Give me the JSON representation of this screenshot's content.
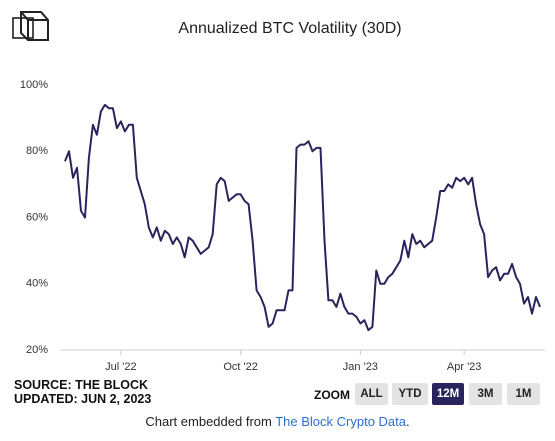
{
  "chart_data": {
    "type": "line",
    "title": "Annualized BTC Volatility (30D)",
    "categories": [
      null,
      null,
      null,
      null,
      null,
      null,
      null,
      null,
      null,
      null,
      null,
      null,
      null,
      null,
      "Jul '22",
      null,
      null,
      null,
      null,
      null,
      null,
      null,
      null,
      null,
      null,
      null,
      null,
      null,
      null,
      null,
      null,
      null,
      null,
      null,
      null,
      null,
      null,
      null,
      null,
      null,
      null,
      null,
      null,
      null,
      "Oct '22",
      null,
      null,
      null,
      null,
      null,
      null,
      null,
      null,
      null,
      null,
      null,
      null,
      null,
      null,
      null,
      null,
      null,
      null,
      null,
      null,
      null,
      null,
      null,
      null,
      null,
      null,
      null,
      null,
      null,
      "Jan '23",
      null,
      null,
      null,
      null,
      null,
      null,
      null,
      null,
      null,
      null,
      null,
      null,
      null,
      null,
      null,
      null,
      null,
      null,
      null,
      null,
      null,
      null,
      null,
      null,
      null,
      "Apr '23",
      null,
      null,
      null,
      null,
      null,
      null,
      null,
      null,
      null,
      null,
      null,
      null,
      null,
      null,
      null,
      null,
      null,
      null,
      null
    ],
    "values": [
      77,
      80,
      72,
      75,
      62,
      60,
      78,
      88,
      85,
      92,
      94,
      93,
      93,
      87,
      89,
      86,
      88,
      88,
      72,
      68,
      64,
      57,
      54,
      57,
      53,
      56,
      55,
      52,
      54,
      52,
      48,
      54,
      53,
      51,
      49,
      50,
      51,
      55,
      70,
      72,
      71,
      65,
      66,
      67,
      67,
      65,
      64,
      53,
      38,
      36,
      33,
      27,
      28,
      32,
      32,
      32,
      38,
      38,
      81,
      82,
      82,
      83,
      80,
      81,
      81,
      53,
      35,
      35,
      33,
      37,
      33,
      31,
      31,
      30,
      28,
      29,
      26,
      27,
      44,
      40,
      40,
      42,
      43,
      45,
      47,
      53,
      48,
      55,
      52,
      53,
      51,
      52,
      53,
      60,
      68,
      68,
      70,
      69,
      72,
      71,
      72,
      70,
      72,
      64,
      58,
      55,
      42,
      44,
      45,
      41,
      43,
      43,
      46,
      42,
      40,
      34,
      36,
      31,
      36,
      33
    ],
    "color": "#29255c",
    "ylim": [
      20,
      100
    ],
    "yticks": [
      {
        "value": 20,
        "label": "20%"
      },
      {
        "value": 40,
        "label": "40%"
      },
      {
        "value": 60,
        "label": "60%"
      },
      {
        "value": 80,
        "label": "80%"
      },
      {
        "value": 100,
        "label": "100%"
      }
    ],
    "grid": false
  },
  "source": {
    "line1": "SOURCE: THE BLOCK",
    "line2": "UPDATED: JUN 2, 2023"
  },
  "zoom": {
    "label": "ZOOM",
    "buttons": [
      "ALL",
      "YTD",
      "12M",
      "3M",
      "1M"
    ],
    "selected": "12M"
  },
  "footer": {
    "prefix": "Chart embedded from",
    "link": "The Block Crypto Data",
    "suffix": "."
  }
}
